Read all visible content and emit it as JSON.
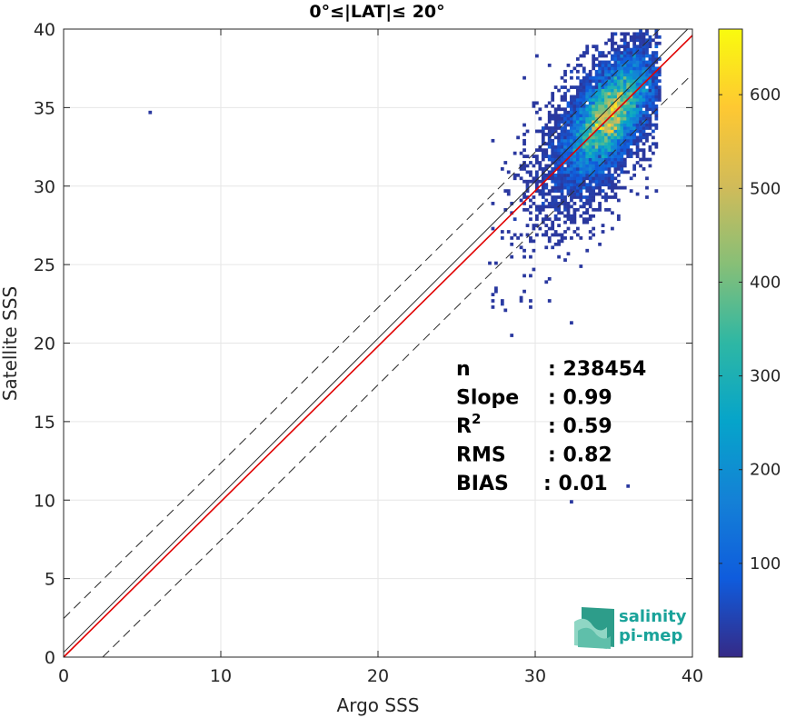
{
  "chart_data": {
    "type": "heatmap",
    "title": "0°≤|LAT|≤ 20°",
    "xlabel": "Argo SSS",
    "ylabel": "Satellite SSS",
    "xlim": [
      0,
      40
    ],
    "ylim": [
      0,
      40
    ],
    "xticks": [
      "0",
      "10",
      "20",
      "30",
      "40"
    ],
    "yticks": [
      "0",
      "5",
      "10",
      "15",
      "20",
      "25",
      "30",
      "35",
      "40"
    ],
    "grid": true,
    "colorbar": {
      "range": [
        0,
        670
      ],
      "ticks": [
        "100",
        "200",
        "300",
        "400",
        "500",
        "600"
      ],
      "colormap": "parula",
      "colors": [
        "#352a87",
        "#0f5cdd",
        "#1481d6",
        "#06a4ca",
        "#2eb7a4",
        "#87bf77",
        "#d1bb59",
        "#fec832",
        "#f9fb0e"
      ]
    },
    "density_peak": {
      "x": 34.7,
      "y": 34.5,
      "count": 670
    },
    "lines": [
      {
        "name": "1:1",
        "color": "#2a2a2a",
        "slope": 1,
        "intercept": 0.3
      },
      {
        "name": "regression",
        "color": "#e00000",
        "slope": 0.99,
        "intercept": 0.0
      },
      {
        "name": "upper bound",
        "color": "#2a2a2a",
        "style": "dashed",
        "slope": 0.99,
        "intercept": 2.46
      },
      {
        "name": "lower bound",
        "color": "#2a2a2a",
        "style": "dashed",
        "slope": 0.99,
        "intercept": -2.46
      }
    ],
    "stats": [
      {
        "label": "n",
        "sup": "",
        "value": ": 238454"
      },
      {
        "label": "Slope",
        "sup": "",
        "value": ": 0.99"
      },
      {
        "label": "R",
        "sup": "2",
        "value": ": 0.59"
      },
      {
        "label": "RMS",
        "sup": "",
        "value": ": 0.82"
      },
      {
        "label": "BIAS",
        "sup": "",
        "value": ": 0.01"
      }
    ]
  },
  "logo": {
    "line1": "salinity",
    "line2": "pi-mep"
  }
}
